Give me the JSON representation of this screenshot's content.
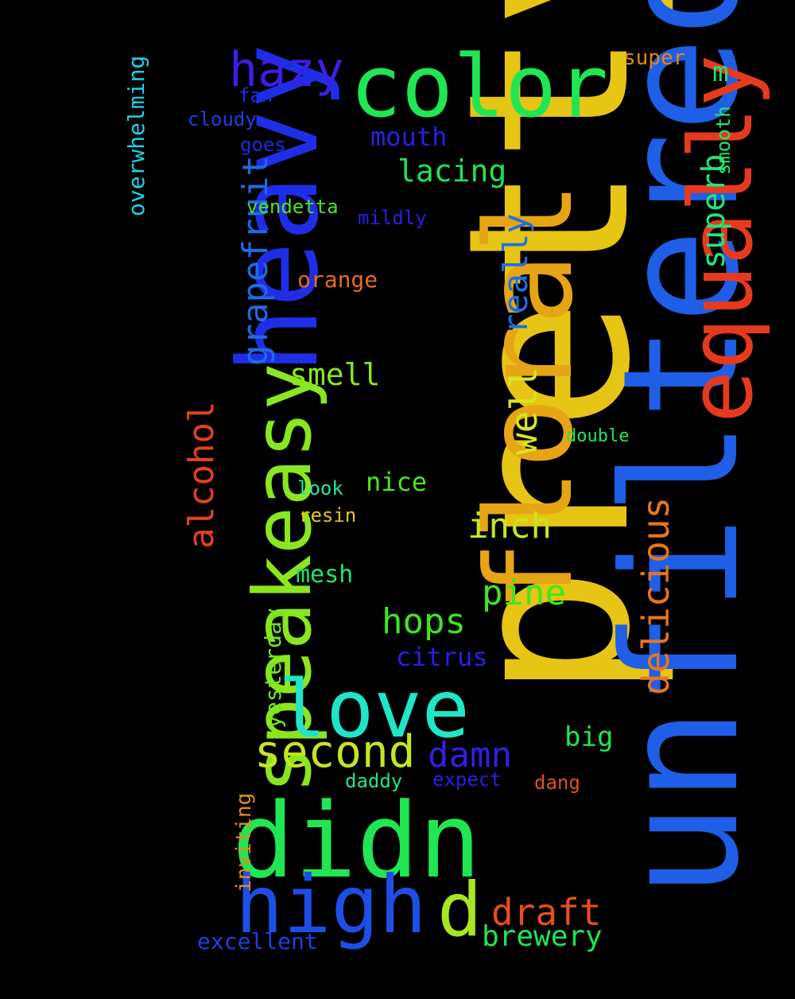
{
  "background": "#000000",
  "words": {
    "pretty": {
      "text": "pretty",
      "color": "#e6c515"
    },
    "unfiltered": {
      "text": "unfiltered",
      "color": "#1f5ee6"
    },
    "floral": {
      "text": "floral",
      "color": "#e6a515"
    },
    "heavy": {
      "text": "heavy",
      "color": "#1f2ee6"
    },
    "equally": {
      "text": "equally",
      "color": "#e63a1f"
    },
    "speakeasy": {
      "text": "speakeasy",
      "color": "#8ae61f"
    },
    "didn": {
      "text": "didn",
      "color": "#1fe652"
    },
    "color": {
      "text": "color",
      "color": "#1fe652"
    },
    "love": {
      "text": "love",
      "color": "#1fe6c8"
    },
    "high": {
      "text": "high",
      "color": "#1f4ee6"
    },
    "d": {
      "text": "d",
      "color": "#a8e61f"
    },
    "hazy": {
      "text": "hazy",
      "color": "#3a1fe6"
    },
    "second": {
      "text": "second",
      "color": "#c5e61f"
    },
    "grapefruit": {
      "text": "grapefruit",
      "color": "#1f6ae6"
    },
    "alcohol": {
      "text": "alcohol",
      "color": "#e6401f"
    },
    "delicious": {
      "text": "delicious",
      "color": "#e6761f"
    },
    "well": {
      "text": "well",
      "color": "#d8e61f"
    },
    "really": {
      "text": "really",
      "color": "#1f6ee6"
    },
    "superb": {
      "text": "superb",
      "color": "#1fe67a"
    },
    "overwhelming": {
      "text": "overwhelming",
      "color": "#1fd2e6"
    },
    "yesterday": {
      "text": "yesterday",
      "color": "#74e61f"
    },
    "inviting": {
      "text": "inviting",
      "color": "#e68a1f"
    },
    "smooth": {
      "text": "smooth",
      "color": "#1fe66a"
    },
    "draft": {
      "text": "draft",
      "color": "#e64e1f"
    },
    "inch": {
      "text": "inch",
      "color": "#c8e61f"
    },
    "pine": {
      "text": "pine",
      "color": "#3ee61f"
    },
    "hops": {
      "text": "hops",
      "color": "#3ee61f"
    },
    "damn": {
      "text": "damn",
      "color": "#301fe6"
    },
    "lacing": {
      "text": "lacing",
      "color": "#1fe652"
    },
    "smell": {
      "text": "smell",
      "color": "#8ae61f"
    },
    "brewery": {
      "text": "brewery",
      "color": "#1fe652"
    },
    "mouth": {
      "text": "mouth",
      "color": "#2a1fe6"
    },
    "nice": {
      "text": "nice",
      "color": "#4ae61f"
    },
    "citrus": {
      "text": "citrus",
      "color": "#2a1fe6"
    },
    "mesh": {
      "text": "mesh",
      "color": "#1fe66a"
    },
    "big": {
      "text": "big",
      "color": "#1fe652"
    },
    "orange": {
      "text": "orange",
      "color": "#e66a1f"
    },
    "excellent": {
      "text": "excellent",
      "color": "#1f3ee6"
    },
    "super": {
      "text": "super",
      "color": "#e6861f"
    },
    "m": {
      "text": "m",
      "color": "#1fe66a"
    },
    "vendetta": {
      "text": "vendetta",
      "color": "#4ae61f"
    },
    "mildly": {
      "text": "mildly",
      "color": "#2a1fe6"
    },
    "resin": {
      "text": "resin",
      "color": "#e6c51f"
    },
    "look": {
      "text": "look",
      "color": "#1fe6a8"
    },
    "double": {
      "text": "double",
      "color": "#1fe65a"
    },
    "fan": {
      "text": "fan",
      "color": "#1f2ae6"
    },
    "cloudy": {
      "text": "cloudy",
      "color": "#1f3ee6"
    },
    "goes": {
      "text": "goes",
      "color": "#1f2ae6"
    },
    "daddy": {
      "text": "daddy",
      "color": "#1fe68a"
    },
    "expect": {
      "text": "expect",
      "color": "#2a1fe6"
    },
    "dang": {
      "text": "dang",
      "color": "#e6501f"
    }
  }
}
